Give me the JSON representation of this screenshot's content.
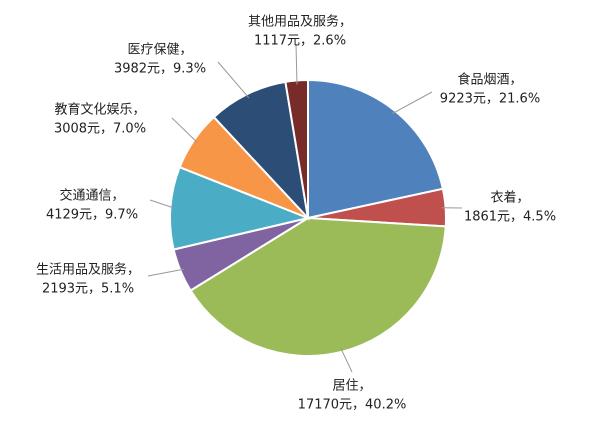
{
  "chart_data": {
    "type": "pie",
    "categories": [
      "食品烟酒，",
      "衣着，",
      "居住，",
      "生活用品及服务，",
      "交通通信，",
      "教育文化娱乐，",
      "医疗保健，",
      "其他用品及服务，"
    ],
    "values": [
      9223,
      1861,
      17170,
      2193,
      4129,
      3008,
      3982,
      1117
    ],
    "value_labels": [
      "9223元，21.6%",
      "1861元，4.5%",
      "17170元，40.2%",
      "2193元，5.1%",
      "4129元，9.7%",
      "3008元，7.0%",
      "3982元，9.3%",
      "1117元，2.6%"
    ],
    "colors": [
      "#4f81bd",
      "#c0504d",
      "#9bbb59",
      "#8064a2",
      "#4bacc6",
      "#f79646",
      "#2c4d75",
      "#772c2a"
    ]
  }
}
